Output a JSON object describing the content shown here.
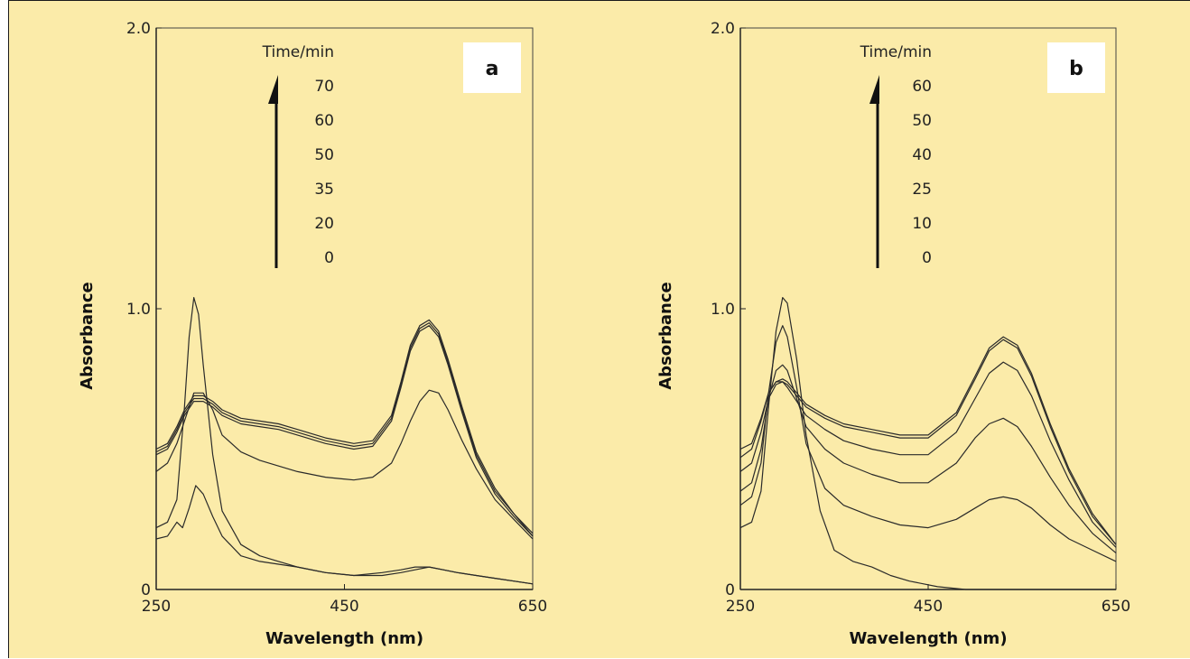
{
  "chart_data": [
    {
      "type": "line",
      "panel_label": "a",
      "xlabel": "Wavelength (nm)",
      "ylabel": "Absorbance",
      "xlim": [
        250,
        650
      ],
      "ylim": [
        0,
        2.0
      ],
      "x_ticks": [
        "250",
        "450",
        "650"
      ],
      "y_ticks": [
        "0",
        "1.0",
        "2.0"
      ],
      "time_legend": {
        "title": "Time/min",
        "values": [
          "70",
          "60",
          "50",
          "35",
          "20",
          "0"
        ]
      },
      "grid": false,
      "series": [
        {
          "x": [
            250,
            262,
            272,
            278,
            285,
            292,
            300,
            310,
            320,
            340,
            360,
            380,
            400,
            430,
            460,
            490,
            510,
            525,
            540,
            555,
            570,
            590,
            610,
            630,
            650
          ],
          "y": [
            0.18,
            0.19,
            0.24,
            0.22,
            0.29,
            0.37,
            0.34,
            0.26,
            0.19,
            0.12,
            0.1,
            0.09,
            0.08,
            0.06,
            0.05,
            0.06,
            0.07,
            0.08,
            0.08,
            0.07,
            0.06,
            0.05,
            0.04,
            0.03,
            0.02
          ]
        },
        {
          "x": [
            250,
            262,
            272,
            280,
            285,
            290,
            295,
            300,
            310,
            320,
            340,
            360,
            380,
            400,
            430,
            460,
            490,
            510,
            525,
            540,
            555,
            570,
            590,
            610,
            630,
            650
          ],
          "y": [
            0.22,
            0.24,
            0.32,
            0.65,
            0.9,
            1.04,
            0.98,
            0.8,
            0.48,
            0.28,
            0.16,
            0.12,
            0.1,
            0.08,
            0.06,
            0.05,
            0.05,
            0.06,
            0.07,
            0.08,
            0.07,
            0.06,
            0.05,
            0.04,
            0.03,
            0.02
          ]
        },
        {
          "x": [
            250,
            262,
            272,
            280,
            290,
            300,
            310,
            320,
            340,
            360,
            380,
            400,
            430,
            460,
            480,
            500,
            510,
            520,
            530,
            540,
            550,
            560,
            575,
            590,
            610,
            630,
            650
          ],
          "y": [
            0.42,
            0.45,
            0.52,
            0.6,
            0.7,
            0.7,
            0.64,
            0.55,
            0.49,
            0.46,
            0.44,
            0.42,
            0.4,
            0.39,
            0.4,
            0.45,
            0.52,
            0.6,
            0.67,
            0.71,
            0.7,
            0.64,
            0.53,
            0.43,
            0.32,
            0.25,
            0.18
          ]
        },
        {
          "x": [
            250,
            262,
            272,
            280,
            290,
            300,
            310,
            320,
            340,
            360,
            380,
            400,
            430,
            460,
            480,
            500,
            510,
            520,
            530,
            540,
            550,
            560,
            575,
            590,
            610,
            630,
            650
          ],
          "y": [
            0.48,
            0.5,
            0.56,
            0.62,
            0.67,
            0.67,
            0.65,
            0.62,
            0.59,
            0.58,
            0.57,
            0.55,
            0.52,
            0.5,
            0.51,
            0.6,
            0.72,
            0.85,
            0.92,
            0.94,
            0.9,
            0.8,
            0.63,
            0.47,
            0.34,
            0.26,
            0.19
          ]
        },
        {
          "x": [
            250,
            262,
            272,
            280,
            290,
            300,
            310,
            320,
            340,
            360,
            380,
            400,
            430,
            460,
            480,
            500,
            510,
            520,
            530,
            540,
            550,
            560,
            575,
            590,
            610,
            630,
            650
          ],
          "y": [
            0.49,
            0.51,
            0.57,
            0.63,
            0.68,
            0.68,
            0.66,
            0.63,
            0.6,
            0.59,
            0.58,
            0.56,
            0.53,
            0.51,
            0.52,
            0.61,
            0.73,
            0.86,
            0.93,
            0.95,
            0.91,
            0.81,
            0.64,
            0.48,
            0.35,
            0.27,
            0.19
          ]
        },
        {
          "x": [
            250,
            262,
            272,
            280,
            290,
            300,
            310,
            320,
            340,
            360,
            380,
            400,
            430,
            460,
            480,
            500,
            510,
            520,
            530,
            540,
            550,
            560,
            575,
            590,
            610,
            630,
            650
          ],
          "y": [
            0.5,
            0.52,
            0.58,
            0.64,
            0.69,
            0.69,
            0.67,
            0.64,
            0.61,
            0.6,
            0.59,
            0.57,
            0.54,
            0.52,
            0.53,
            0.62,
            0.74,
            0.87,
            0.94,
            0.96,
            0.92,
            0.82,
            0.65,
            0.49,
            0.36,
            0.27,
            0.2
          ]
        }
      ]
    },
    {
      "type": "line",
      "panel_label": "b",
      "xlabel": "Wavelength (nm)",
      "ylabel": "Absorbance",
      "xlim": [
        250,
        650
      ],
      "ylim": [
        0,
        2.0
      ],
      "x_ticks": [
        "250",
        "450",
        "650"
      ],
      "y_ticks": [
        "0",
        "1.0",
        "2.0"
      ],
      "time_legend": {
        "title": "Time/min",
        "values": [
          "60",
          "50",
          "40",
          "25",
          "10",
          "0"
        ]
      },
      "grid": false,
      "series": [
        {
          "x": [
            250,
            262,
            272,
            280,
            288,
            295,
            300,
            310,
            320,
            335,
            350,
            370,
            390,
            410,
            430,
            460,
            490,
            520,
            560,
            600,
            650
          ],
          "y": [
            0.22,
            0.24,
            0.35,
            0.65,
            0.92,
            1.04,
            1.02,
            0.82,
            0.55,
            0.28,
            0.14,
            0.1,
            0.08,
            0.05,
            0.03,
            0.01,
            0.0,
            0.0,
            0.0,
            0.0,
            0.0
          ]
        },
        {
          "x": [
            250,
            262,
            272,
            280,
            288,
            295,
            300,
            310,
            320,
            340,
            360,
            390,
            420,
            450,
            480,
            500,
            515,
            530,
            545,
            560,
            580,
            600,
            625,
            650
          ],
          "y": [
            0.3,
            0.33,
            0.45,
            0.7,
            0.88,
            0.94,
            0.9,
            0.72,
            0.52,
            0.36,
            0.3,
            0.26,
            0.23,
            0.22,
            0.25,
            0.29,
            0.32,
            0.33,
            0.32,
            0.29,
            0.23,
            0.18,
            0.14,
            0.1
          ]
        },
        {
          "x": [
            250,
            262,
            272,
            280,
            288,
            295,
            300,
            310,
            320,
            340,
            360,
            390,
            420,
            450,
            480,
            500,
            515,
            530,
            545,
            560,
            580,
            600,
            625,
            650
          ],
          "y": [
            0.35,
            0.38,
            0.5,
            0.68,
            0.78,
            0.8,
            0.78,
            0.68,
            0.58,
            0.5,
            0.45,
            0.41,
            0.38,
            0.38,
            0.45,
            0.54,
            0.59,
            0.61,
            0.58,
            0.51,
            0.4,
            0.3,
            0.2,
            0.13
          ]
        },
        {
          "x": [
            250,
            262,
            272,
            280,
            288,
            295,
            300,
            310,
            320,
            340,
            360,
            390,
            420,
            450,
            480,
            500,
            515,
            530,
            545,
            560,
            580,
            600,
            625,
            650
          ],
          "y": [
            0.42,
            0.45,
            0.56,
            0.68,
            0.73,
            0.74,
            0.72,
            0.67,
            0.62,
            0.57,
            0.53,
            0.5,
            0.48,
            0.48,
            0.56,
            0.68,
            0.77,
            0.81,
            0.78,
            0.69,
            0.53,
            0.39,
            0.24,
            0.15
          ]
        },
        {
          "x": [
            250,
            262,
            272,
            280,
            288,
            295,
            300,
            310,
            320,
            340,
            360,
            390,
            420,
            450,
            480,
            500,
            515,
            530,
            545,
            560,
            580,
            600,
            625,
            650
          ],
          "y": [
            0.47,
            0.5,
            0.6,
            0.7,
            0.74,
            0.74,
            0.73,
            0.69,
            0.65,
            0.61,
            0.58,
            0.56,
            0.54,
            0.54,
            0.62,
            0.75,
            0.85,
            0.89,
            0.86,
            0.76,
            0.58,
            0.42,
            0.26,
            0.16
          ]
        },
        {
          "x": [
            250,
            262,
            272,
            280,
            288,
            295,
            300,
            310,
            320,
            340,
            360,
            390,
            420,
            450,
            480,
            500,
            515,
            530,
            545,
            560,
            580,
            600,
            625,
            650
          ],
          "y": [
            0.5,
            0.52,
            0.61,
            0.7,
            0.74,
            0.75,
            0.74,
            0.7,
            0.66,
            0.62,
            0.59,
            0.57,
            0.55,
            0.55,
            0.63,
            0.76,
            0.86,
            0.9,
            0.87,
            0.77,
            0.59,
            0.43,
            0.27,
            0.16
          ]
        }
      ]
    }
  ]
}
